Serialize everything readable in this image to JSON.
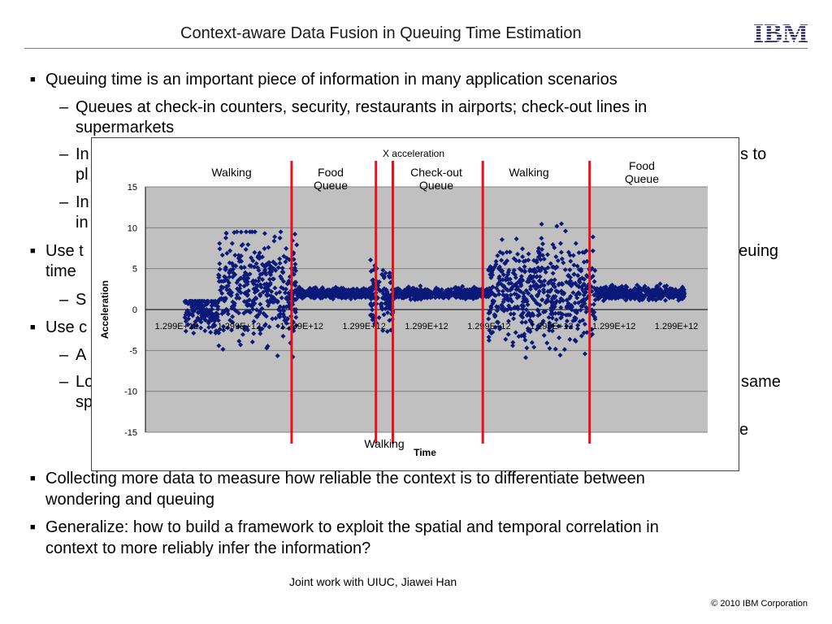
{
  "slide": {
    "title": "Context-aware Data Fusion in Queuing Time Estimation",
    "logo_text": "IBM",
    "footer_credit": "Joint work with UIUC, Jiawei Han",
    "copyright": "© 2010 IBM Corporation"
  },
  "body": {
    "b1": "Queuing time is an important piece of information in many application scenarios",
    "b1_s1_l1": "Queues at check-in counters, security, restaurants in airports; check-out lines in",
    "b1_s1_l2": "supermarkets",
    "b1_s2_l1": "In",
    "b1_s2_l1_tail": "s to",
    "b1_s2_l2": "pl",
    "b1_s3_l1": "In",
    "b1_s3_l2": "in",
    "b2_l1": "Use t",
    "b2_l1_tail": "ueuing",
    "b2_l2": "time",
    "b2_s1": "S",
    "b3": "Use c",
    "b3_s1": "A",
    "b3_s2_l1": "Lo",
    "b3_s2_l1_tail": "same",
    "b3_s2_l2": "sp",
    "b3_s3_tail": "e",
    "b4_l1": "Collecting more data to measure how reliable the context is to differentiate between",
    "b4_l2": "wondering and queuing",
    "b5_l1": "Generalize: how to build a framework to exploit the spatial and temporal correlation in",
    "b5_l2": "context to more reliably infer the information?"
  },
  "chart_data": {
    "type": "scatter",
    "title": "X acceleration",
    "xlabel": "Time",
    "ylabel": "Acceleration",
    "ylim": [
      -15,
      15
    ],
    "y_ticks": [
      15,
      10,
      5,
      0,
      -5,
      -10,
      -15
    ],
    "x_tick_labels": [
      "1.299E+12",
      "1.299E+12",
      "1.299E+12",
      "1.299E+12",
      "1.299E+12",
      "1.299E+12",
      "1.299E+12",
      "1.299E+12",
      "1.299E+12"
    ],
    "grid": true,
    "series_color": "#0a1a7a",
    "divider_color": "#e8101a",
    "plot_bg": "#c0c0c0",
    "segment_labels": [
      {
        "text": "Walking"
      },
      {
        "text": "Food\nQueue"
      },
      {
        "text": "Check-out\nQueue"
      },
      {
        "text": "Walking"
      },
      {
        "text": "Food\nQueue"
      },
      {
        "text": "Walking"
      }
    ],
    "activity_segments": [
      {
        "x": [
          0.07,
          0.13
        ],
        "center": 0.0,
        "spread": 2.5,
        "low": -8,
        "high": 1
      },
      {
        "x": [
          0.13,
          0.27
        ],
        "center": 2.5,
        "spread": 6.5,
        "low": -9,
        "high": 9.5
      },
      {
        "x": [
          0.27,
          0.4
        ],
        "center": 2.0,
        "spread": 0.6,
        "low": 0.5,
        "high": 3.5
      },
      {
        "x": [
          0.4,
          0.44
        ],
        "center": 1.5,
        "spread": 4.0,
        "low": -5,
        "high": 7.5
      },
      {
        "x": [
          0.44,
          0.61
        ],
        "center": 2.0,
        "spread": 0.6,
        "low": 0.5,
        "high": 3.5
      },
      {
        "x": [
          0.61,
          0.8
        ],
        "center": 2.0,
        "spread": 6.0,
        "low": -10,
        "high": 11
      },
      {
        "x": [
          0.8,
          0.96
        ],
        "center": 2.0,
        "spread": 0.8,
        "low": 0,
        "high": 3.5
      }
    ],
    "divider_positions": [
      0.26,
      0.41,
      0.44,
      0.6,
      0.79
    ]
  }
}
